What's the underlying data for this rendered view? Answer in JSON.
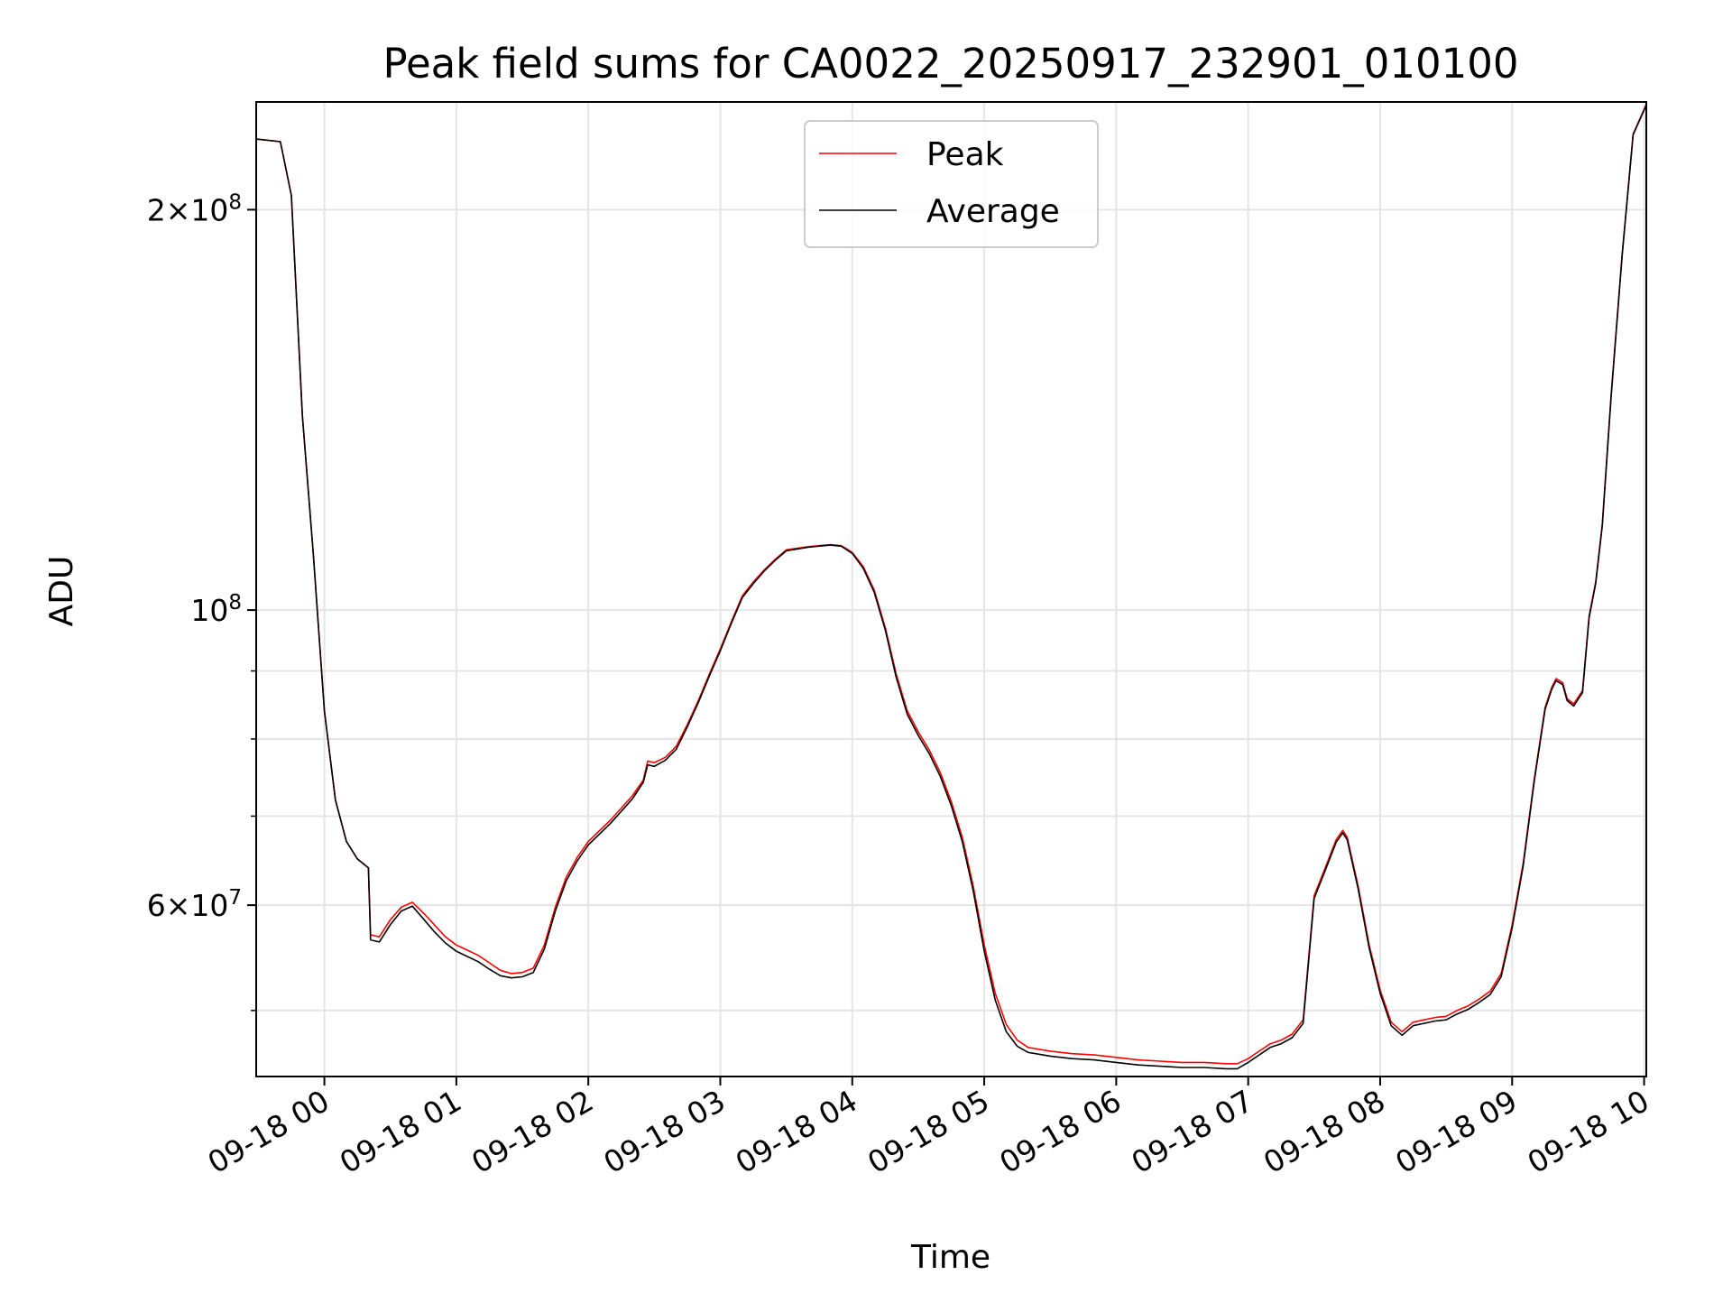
{
  "chart_data": {
    "type": "line",
    "title": "Peak field sums for CA0022_20250917_232901_010100",
    "xlabel": "Time",
    "ylabel": "ADU",
    "yscale": "log",
    "grid": true,
    "legend_position": "upper center",
    "xlim": [
      "2025-09-17 23:29",
      "2025-09-18 10:01"
    ],
    "ylim": [
      44600000,
      241000000
    ],
    "x_ticks": [
      "09-18 00",
      "09-18 01",
      "09-18 02",
      "09-18 03",
      "09-18 04",
      "09-18 05",
      "09-18 06",
      "09-18 07",
      "09-18 08",
      "09-18 09",
      "09-18 10"
    ],
    "y_ticks": [
      {
        "value": 200000000,
        "mantissa": "2",
        "exponent": "8"
      },
      {
        "value": 100000000,
        "mantissa": "",
        "exponent": "8"
      },
      {
        "value": 60000000,
        "mantissa": "6",
        "exponent": "7"
      }
    ],
    "x": [
      "2025-09-17 23:29",
      "2025-09-17 23:40",
      "2025-09-17 23:45",
      "2025-09-17 23:50",
      "2025-09-17 23:55",
      "2025-09-18 00:00",
      "2025-09-18 00:05",
      "2025-09-18 00:10",
      "2025-09-18 00:15",
      "2025-09-18 00:20",
      "2025-09-18 00:21",
      "2025-09-18 00:25",
      "2025-09-18 00:30",
      "2025-09-18 00:35",
      "2025-09-18 00:40",
      "2025-09-18 00:45",
      "2025-09-18 00:50",
      "2025-09-18 00:55",
      "2025-09-18 01:00",
      "2025-09-18 01:05",
      "2025-09-18 01:10",
      "2025-09-18 01:15",
      "2025-09-18 01:20",
      "2025-09-18 01:25",
      "2025-09-18 01:30",
      "2025-09-18 01:35",
      "2025-09-18 01:40",
      "2025-09-18 01:45",
      "2025-09-18 01:50",
      "2025-09-18 01:55",
      "2025-09-18 02:00",
      "2025-09-18 02:10",
      "2025-09-18 02:20",
      "2025-09-18 02:25",
      "2025-09-18 02:27",
      "2025-09-18 02:30",
      "2025-09-18 02:35",
      "2025-09-18 02:40",
      "2025-09-18 02:45",
      "2025-09-18 02:50",
      "2025-09-18 02:55",
      "2025-09-18 03:00",
      "2025-09-18 03:05",
      "2025-09-18 03:10",
      "2025-09-18 03:15",
      "2025-09-18 03:20",
      "2025-09-18 03:25",
      "2025-09-18 03:30",
      "2025-09-18 03:40",
      "2025-09-18 03:50",
      "2025-09-18 03:55",
      "2025-09-18 04:00",
      "2025-09-18 04:05",
      "2025-09-18 04:10",
      "2025-09-18 04:15",
      "2025-09-18 04:20",
      "2025-09-18 04:25",
      "2025-09-18 04:30",
      "2025-09-18 04:35",
      "2025-09-18 04:40",
      "2025-09-18 04:45",
      "2025-09-18 04:50",
      "2025-09-18 04:55",
      "2025-09-18 05:00",
      "2025-09-18 05:05",
      "2025-09-18 05:10",
      "2025-09-18 05:15",
      "2025-09-18 05:20",
      "2025-09-18 05:30",
      "2025-09-18 05:40",
      "2025-09-18 05:50",
      "2025-09-18 06:00",
      "2025-09-18 06:10",
      "2025-09-18 06:20",
      "2025-09-18 06:30",
      "2025-09-18 06:40",
      "2025-09-18 06:50",
      "2025-09-18 06:55",
      "2025-09-18 07:00",
      "2025-09-18 07:05",
      "2025-09-18 07:10",
      "2025-09-18 07:15",
      "2025-09-18 07:20",
      "2025-09-18 07:25",
      "2025-09-18 07:30",
      "2025-09-18 07:35",
      "2025-09-18 07:40",
      "2025-09-18 07:43",
      "2025-09-18 07:45",
      "2025-09-18 07:50",
      "2025-09-18 07:55",
      "2025-09-18 08:00",
      "2025-09-18 08:05",
      "2025-09-18 08:10",
      "2025-09-18 08:15",
      "2025-09-18 08:20",
      "2025-09-18 08:25",
      "2025-09-18 08:30",
      "2025-09-18 08:35",
      "2025-09-18 08:40",
      "2025-09-18 08:45",
      "2025-09-18 08:50",
      "2025-09-18 08:55",
      "2025-09-18 09:00",
      "2025-09-18 09:05",
      "2025-09-18 09:10",
      "2025-09-18 09:15",
      "2025-09-18 09:18",
      "2025-09-18 09:20",
      "2025-09-18 09:23",
      "2025-09-18 09:25",
      "2025-09-18 09:28",
      "2025-09-18 09:32",
      "2025-09-18 09:35",
      "2025-09-18 09:38",
      "2025-09-18 09:41",
      "2025-09-18 09:45",
      "2025-09-18 09:50",
      "2025-09-18 09:55",
      "2025-09-18 10:01"
    ],
    "series": [
      {
        "name": "Peak",
        "color": "#ff0000",
        "values": [
          226000000,
          225000000,
          205000000,
          140000000,
          110000000,
          84000000,
          72000000,
          67000000,
          65000000,
          64000000,
          57000000,
          56800000,
          58500000,
          59800000,
          60300000,
          59200000,
          58000000,
          56800000,
          56000000,
          55500000,
          55000000,
          54300000,
          53600000,
          53300000,
          53400000,
          53800000,
          56000000,
          59800000,
          63000000,
          65200000,
          67000000,
          69500000,
          72500000,
          74500000,
          77000000,
          76800000,
          77500000,
          79000000,
          82000000,
          85500000,
          89500000,
          93500000,
          98000000,
          102500000,
          105000000,
          107200000,
          109200000,
          111000000,
          111600000,
          112000000,
          111800000,
          110500000,
          107800000,
          103500000,
          97000000,
          89500000,
          84000000,
          81000000,
          78500000,
          75500000,
          71800000,
          67500000,
          62000000,
          56000000,
          51500000,
          48800000,
          47500000,
          46900000,
          46600000,
          46400000,
          46300000,
          46100000,
          45900000,
          45800000,
          45700000,
          45700000,
          45600000,
          45600000,
          46000000,
          46600000,
          47200000,
          47500000,
          48000000,
          49200000,
          61000000,
          64000000,
          67200000,
          68300000,
          67500000,
          62000000,
          56000000,
          51800000,
          49000000,
          48200000,
          49000000,
          49200000,
          49400000,
          49500000,
          50000000,
          50400000,
          51000000,
          51700000,
          53300000,
          58000000,
          64500000,
          74500000,
          84500000,
          87500000,
          88800000,
          88200000,
          85800000,
          85000000,
          87000000,
          99000000,
          105000000,
          116000000,
          145000000,
          185000000,
          228000000,
          240000000
        ],
        "width": 1
      },
      {
        "name": "Average",
        "color": "#000000",
        "values": [
          226000000,
          225000000,
          205000000,
          140000000,
          110000000,
          84000000,
          72000000,
          67000000,
          65000000,
          64000000,
          56500000,
          56300000,
          58000000,
          59400000,
          59900000,
          58600000,
          57300000,
          56200000,
          55400000,
          54900000,
          54400000,
          53700000,
          53100000,
          52900000,
          53000000,
          53400000,
          55600000,
          59400000,
          62600000,
          64800000,
          66600000,
          69100000,
          72100000,
          74200000,
          76500000,
          76300000,
          77100000,
          78600000,
          81700000,
          85200000,
          89200000,
          93200000,
          97700000,
          102200000,
          104700000,
          107000000,
          109000000,
          110800000,
          111500000,
          111900000,
          111700000,
          110300000,
          107500000,
          103100000,
          96600000,
          89000000,
          83500000,
          80500000,
          78000000,
          75000000,
          71300000,
          67000000,
          61500000,
          55400000,
          50900000,
          48200000,
          47000000,
          46500000,
          46200000,
          46000000,
          45900000,
          45700000,
          45500000,
          45400000,
          45300000,
          45300000,
          45200000,
          45200000,
          45700000,
          46300000,
          46900000,
          47200000,
          47700000,
          48900000,
          60700000,
          63700000,
          66900000,
          68000000,
          67200000,
          61700000,
          55700000,
          51500000,
          48700000,
          47900000,
          48700000,
          48900000,
          49100000,
          49200000,
          49700000,
          50100000,
          50700000,
          51400000,
          53000000,
          57700000,
          64200000,
          74200000,
          84200000,
          87200000,
          88500000,
          87900000,
          85500000,
          84700000,
          86700000,
          98700000,
          104700000,
          115700000,
          144700000,
          184700000,
          227700000,
          239700000
        ],
        "width": 1
      }
    ]
  }
}
